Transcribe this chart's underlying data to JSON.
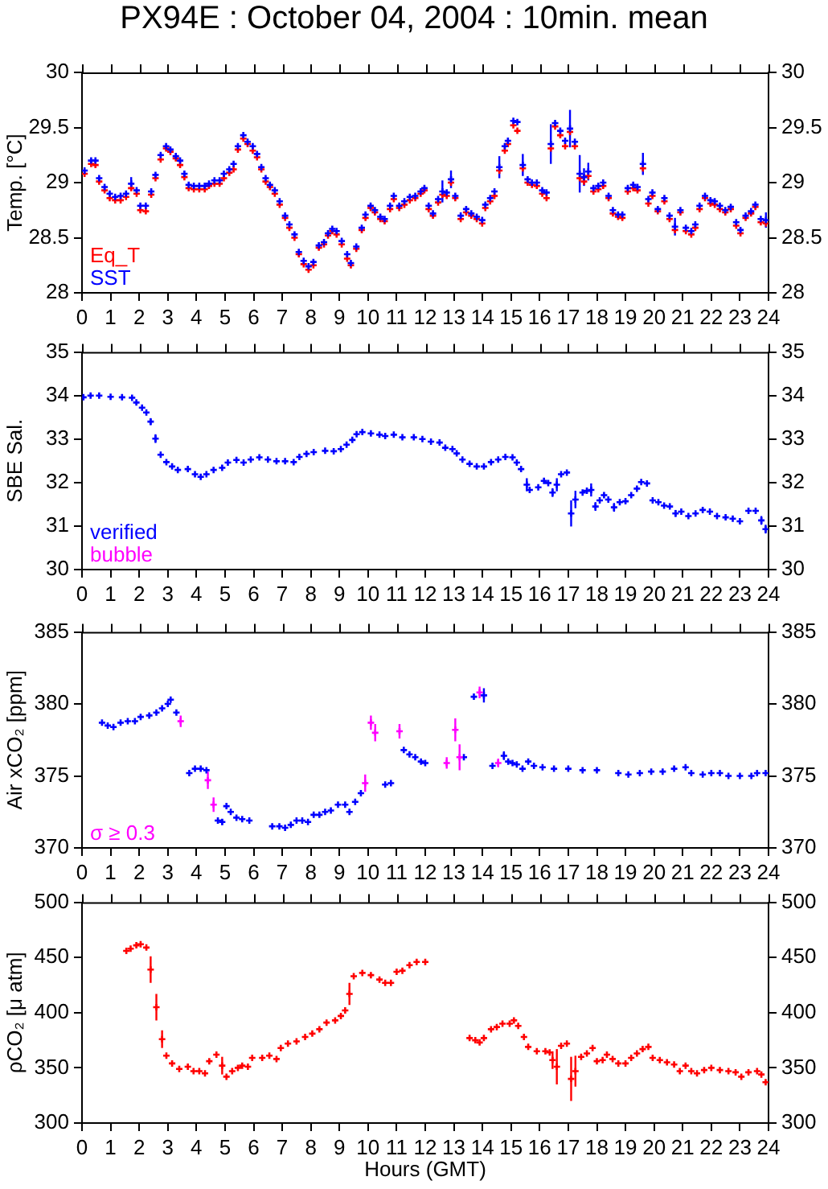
{
  "chart_data": [
    {
      "type": "scatter",
      "title": "PX94E : October 04, 2004 : 10min. mean",
      "ylabel": "Temp. [°C]",
      "xlim": [
        0,
        24
      ],
      "xticks": [
        0,
        1,
        2,
        3,
        4,
        5,
        6,
        7,
        8,
        9,
        10,
        11,
        12,
        13,
        14,
        15,
        16,
        17,
        18,
        19,
        20,
        21,
        22,
        23,
        24
      ],
      "ylim": [
        28,
        30
      ],
      "yticks": [
        28,
        28.5,
        29,
        29.5,
        30
      ],
      "y2lim": [
        28,
        30
      ],
      "y2ticks": [
        28,
        28.5,
        29,
        29.5,
        30
      ],
      "marker": "cross",
      "grid": false,
      "legend": "bottom left",
      "x": [
        0.09,
        0.32,
        0.47,
        0.6,
        0.79,
        0.97,
        1.16,
        1.35,
        1.54,
        1.72,
        1.91,
        2.04,
        2.23,
        2.42,
        2.57,
        2.75,
        2.94,
        3.09,
        3.28,
        3.43,
        3.58,
        3.73,
        3.91,
        4.1,
        4.29,
        4.44,
        4.63,
        4.81,
        4.96,
        5.15,
        5.3,
        5.45,
        5.64,
        5.79,
        5.97,
        6.12,
        6.27,
        6.42,
        6.57,
        6.74,
        6.91,
        7.1,
        7.25,
        7.43,
        7.58,
        7.75,
        7.92,
        8.09,
        8.28,
        8.46,
        8.6,
        8.75,
        8.9,
        9.08,
        9.27,
        9.4,
        9.59,
        9.78,
        9.91,
        10.09,
        10.24,
        10.43,
        10.58,
        10.77,
        10.9,
        11.09,
        11.27,
        11.46,
        11.65,
        11.84,
        11.97,
        12.12,
        12.27,
        12.45,
        12.6,
        12.75,
        12.9,
        13.05,
        13.24,
        13.43,
        13.61,
        13.8,
        13.99,
        14.1,
        14.27,
        14.42,
        14.59,
        14.78,
        14.89,
        15.08,
        15.22,
        15.41,
        15.58,
        15.73,
        15.9,
        16.09,
        16.24,
        16.39,
        16.54,
        16.72,
        16.89,
        17.06,
        17.23,
        17.4,
        17.55,
        17.7,
        17.88,
        18.05,
        18.22,
        18.41,
        18.56,
        18.74,
        18.89,
        19.08,
        19.27,
        19.42,
        19.61,
        19.8,
        19.94,
        20.13,
        20.36,
        20.54,
        20.73,
        20.92,
        21.11,
        21.3,
        21.44,
        21.59,
        21.78,
        21.97,
        22.12,
        22.3,
        22.49,
        22.68,
        22.87,
        23.02,
        23.2,
        23.39,
        23.54,
        23.73,
        23.91
      ],
      "series": [
        {
          "name": "Eq_T",
          "color": "#ff0000",
          "values": [
            29.08,
            29.17,
            29.16,
            29.01,
            28.93,
            28.86,
            28.84,
            28.84,
            28.87,
            28.95,
            28.9,
            28.75,
            28.74,
            28.89,
            29.04,
            29.21,
            29.31,
            29.28,
            29.22,
            29.16,
            29.05,
            28.95,
            28.94,
            28.94,
            28.94,
            28.97,
            28.99,
            28.99,
            29.04,
            29.09,
            29.12,
            29.3,
            29.4,
            29.35,
            29.29,
            29.23,
            29.12,
            29.01,
            28.96,
            28.9,
            28.8,
            28.68,
            28.59,
            28.5,
            28.35,
            28.26,
            28.21,
            28.25,
            28.41,
            28.44,
            28.52,
            28.56,
            28.53,
            28.44,
            28.31,
            28.25,
            28.4,
            28.57,
            28.68,
            28.77,
            28.73,
            28.67,
            28.65,
            28.76,
            28.85,
            28.77,
            28.8,
            28.84,
            28.86,
            28.9,
            28.93,
            28.76,
            28.7,
            28.82,
            28.89,
            28.88,
            29.0,
            28.86,
            28.67,
            28.73,
            28.7,
            28.67,
            28.63,
            28.77,
            28.83,
            28.88,
            29.11,
            29.29,
            29.35,
            29.52,
            29.47,
            29.13,
            29.0,
            28.98,
            28.97,
            28.9,
            28.86,
            29.31,
            29.51,
            29.43,
            29.33,
            29.46,
            29.33,
            29.04,
            29.01,
            29.06,
            28.92,
            28.94,
            28.97,
            28.86,
            28.72,
            28.69,
            28.68,
            28.92,
            28.95,
            28.93,
            29.13,
            28.81,
            28.88,
            28.74,
            28.83,
            28.67,
            28.57,
            28.73,
            28.56,
            28.53,
            28.59,
            28.76,
            28.86,
            28.81,
            28.8,
            28.76,
            28.73,
            28.76,
            28.61,
            28.54,
            28.68,
            28.72,
            28.78,
            28.64,
            28.63
          ]
        },
        {
          "name": "SST",
          "color": "#0000ff",
          "values": [
            29.11,
            29.2,
            29.2,
            29.04,
            28.96,
            28.9,
            28.87,
            28.88,
            28.9,
            28.99,
            28.93,
            28.79,
            28.79,
            28.92,
            29.07,
            29.25,
            29.33,
            29.3,
            29.24,
            29.2,
            29.08,
            28.98,
            28.97,
            28.97,
            28.97,
            28.99,
            29.02,
            29.02,
            29.08,
            29.12,
            29.17,
            29.33,
            29.43,
            29.37,
            29.33,
            29.26,
            29.14,
            29.04,
            28.98,
            28.93,
            28.83,
            28.7,
            28.62,
            28.53,
            28.37,
            28.29,
            28.24,
            28.28,
            28.43,
            28.46,
            28.54,
            28.58,
            28.56,
            28.47,
            28.35,
            28.27,
            28.42,
            28.59,
            28.71,
            28.79,
            28.75,
            28.69,
            28.67,
            28.79,
            28.88,
            28.79,
            28.83,
            28.87,
            28.88,
            28.92,
            28.95,
            28.79,
            28.72,
            28.85,
            28.92,
            28.91,
            29.03,
            28.88,
            28.7,
            28.76,
            28.72,
            28.69,
            28.66,
            28.8,
            28.86,
            28.92,
            29.14,
            29.33,
            29.38,
            29.56,
            29.55,
            29.16,
            29.03,
            29.0,
            29.0,
            28.93,
            28.91,
            29.35,
            29.54,
            29.47,
            29.38,
            29.49,
            29.37,
            29.08,
            29.05,
            29.1,
            28.95,
            28.97,
            29.0,
            28.88,
            28.75,
            28.71,
            28.71,
            28.95,
            28.98,
            28.96,
            29.17,
            28.85,
            28.91,
            28.76,
            28.86,
            28.7,
            28.6,
            28.75,
            28.59,
            28.56,
            28.62,
            28.79,
            28.88,
            28.84,
            28.83,
            28.79,
            28.75,
            28.78,
            28.64,
            28.57,
            28.7,
            28.74,
            28.8,
            28.67,
            28.66
          ],
          "errors": [
            null,
            null,
            null,
            null,
            null,
            null,
            null,
            null,
            null,
            0.06,
            null,
            null,
            null,
            null,
            null,
            null,
            null,
            null,
            null,
            null,
            null,
            null,
            null,
            null,
            null,
            null,
            null,
            null,
            null,
            null,
            null,
            null,
            null,
            null,
            null,
            null,
            null,
            null,
            null,
            null,
            null,
            null,
            null,
            null,
            null,
            null,
            null,
            null,
            null,
            null,
            null,
            null,
            null,
            null,
            null,
            null,
            null,
            null,
            null,
            null,
            null,
            null,
            null,
            null,
            null,
            null,
            null,
            null,
            null,
            null,
            null,
            null,
            null,
            null,
            0.1,
            null,
            0.08,
            null,
            null,
            null,
            null,
            null,
            null,
            null,
            null,
            null,
            0.1,
            null,
            null,
            null,
            null,
            0.1,
            null,
            null,
            null,
            null,
            null,
            0.18,
            null,
            null,
            null,
            0.17,
            null,
            0.17,
            0.08,
            0.08,
            null,
            null,
            null,
            null,
            null,
            null,
            null,
            null,
            null,
            null,
            0.1,
            null,
            null,
            null,
            null,
            null,
            0.08,
            null,
            null,
            null,
            null,
            null,
            null,
            null,
            null,
            null,
            null,
            null,
            null,
            null,
            null,
            null,
            null,
            null,
            0.07
          ]
        }
      ]
    },
    {
      "type": "scatter",
      "ylabel": "SBE Sal.",
      "xlim": [
        0,
        24
      ],
      "xticks": [
        0,
        1,
        2,
        3,
        4,
        5,
        6,
        7,
        8,
        9,
        10,
        11,
        12,
        13,
        14,
        15,
        16,
        17,
        18,
        19,
        20,
        21,
        22,
        23,
        24
      ],
      "ylim": [
        30,
        35
      ],
      "yticks": [
        30,
        31,
        32,
        33,
        34,
        35
      ],
      "y2lim": [
        30,
        35
      ],
      "y2ticks": [
        30,
        31,
        32,
        33,
        34,
        35
      ],
      "marker": "cross",
      "grid": false,
      "legend": "bottom left",
      "x": [
        0.05,
        0.3,
        0.6,
        1.0,
        1.4,
        1.75,
        1.9,
        2.1,
        2.25,
        2.4,
        2.57,
        2.75,
        2.95,
        3.15,
        3.35,
        3.7,
        3.95,
        4.15,
        4.35,
        4.6,
        4.9,
        5.1,
        5.4,
        5.65,
        5.9,
        6.2,
        6.5,
        6.8,
        7.1,
        7.4,
        7.6,
        7.85,
        8.1,
        8.5,
        8.8,
        9.05,
        9.25,
        9.45,
        9.6,
        9.8,
        10.1,
        10.4,
        10.6,
        10.9,
        11.2,
        11.6,
        11.9,
        12.2,
        12.5,
        12.7,
        12.95,
        13.1,
        13.3,
        13.55,
        13.8,
        14.05,
        14.3,
        14.55,
        14.8,
        15.05,
        15.2,
        15.35,
        15.55,
        15.65,
        15.95,
        16.15,
        16.3,
        16.45,
        16.6,
        16.75,
        16.95,
        17.1,
        17.25,
        17.5,
        17.65,
        17.8,
        17.95,
        18.1,
        18.25,
        18.4,
        18.6,
        18.8,
        19.0,
        19.2,
        19.4,
        19.55,
        19.75,
        19.95,
        20.15,
        20.35,
        20.55,
        20.75,
        20.95,
        21.2,
        21.45,
        21.7,
        21.95,
        22.2,
        22.5,
        22.75,
        23.0,
        23.3,
        23.55,
        23.75,
        23.9
      ],
      "series": [
        {
          "name": "verified",
          "color": "#0000ff",
          "values": [
            33.96,
            34.0,
            34.0,
            33.97,
            33.96,
            33.95,
            33.84,
            33.72,
            33.61,
            33.4,
            33.01,
            32.64,
            32.47,
            32.37,
            32.29,
            32.31,
            32.19,
            32.13,
            32.19,
            32.29,
            32.34,
            32.46,
            32.52,
            32.46,
            32.53,
            32.58,
            32.53,
            32.49,
            32.49,
            32.47,
            32.59,
            32.66,
            32.7,
            32.73,
            32.72,
            32.77,
            32.87,
            32.98,
            33.11,
            33.16,
            33.13,
            33.1,
            33.07,
            33.1,
            33.04,
            33.04,
            33.0,
            32.94,
            32.92,
            32.8,
            32.77,
            32.67,
            32.53,
            32.43,
            32.37,
            32.37,
            32.47,
            32.53,
            32.59,
            32.58,
            32.46,
            32.31,
            31.95,
            31.83,
            31.89,
            32.04,
            31.99,
            31.77,
            31.95,
            32.19,
            32.23,
            31.29,
            31.61,
            31.77,
            31.81,
            31.83,
            31.45,
            31.59,
            31.71,
            31.61,
            31.43,
            31.55,
            31.57,
            31.71,
            31.86,
            32.01,
            31.98,
            31.59,
            31.55,
            31.47,
            31.45,
            31.29,
            31.33,
            31.23,
            31.29,
            31.37,
            31.33,
            31.23,
            31.2,
            31.17,
            31.11,
            31.35,
            31.35,
            31.13,
            30.93
          ],
          "errors": [
            null,
            null,
            null,
            null,
            null,
            null,
            null,
            null,
            null,
            0.08,
            0.1,
            null,
            null,
            null,
            null,
            null,
            null,
            null,
            null,
            null,
            null,
            null,
            null,
            null,
            null,
            null,
            null,
            null,
            null,
            null,
            null,
            null,
            null,
            null,
            null,
            null,
            null,
            null,
            null,
            null,
            null,
            null,
            null,
            null,
            null,
            null,
            null,
            null,
            null,
            null,
            null,
            null,
            null,
            null,
            null,
            null,
            null,
            null,
            null,
            null,
            null,
            null,
            0.15,
            null,
            null,
            null,
            null,
            0.1,
            0.15,
            null,
            null,
            0.3,
            0.2,
            null,
            null,
            0.15,
            0.1,
            null,
            null,
            null,
            0.1,
            null,
            null,
            null,
            null,
            null,
            null,
            null,
            null,
            null,
            null,
            0.08,
            null,
            null,
            null,
            null,
            null,
            null,
            null,
            null,
            null,
            null,
            null,
            0.1,
            0.1
          ]
        },
        {
          "name": "bubble",
          "color": "#ff00ff",
          "values": [
            null,
            null,
            null,
            null,
            null,
            null,
            null,
            null,
            null,
            null,
            null,
            null,
            null,
            null,
            null,
            null,
            null,
            null,
            null,
            null,
            null,
            null,
            null,
            null,
            null,
            null,
            null,
            null,
            null,
            null,
            null,
            null,
            null,
            null,
            null,
            null,
            null,
            null,
            null,
            null,
            null,
            null,
            null,
            null,
            null,
            null,
            null,
            null,
            null,
            null,
            null,
            null,
            null,
            null,
            null,
            null,
            null,
            null,
            null,
            null,
            null,
            null,
            null,
            null,
            null,
            null,
            null,
            null,
            null,
            null,
            null,
            null,
            null,
            null,
            null,
            null,
            null,
            null,
            null,
            null,
            null,
            null,
            null,
            null,
            null,
            null,
            null,
            null,
            null,
            null,
            null,
            null,
            null,
            null,
            null,
            null,
            null,
            null,
            null,
            null,
            null,
            null,
            null,
            null,
            null
          ]
        }
      ]
    },
    {
      "type": "scatter",
      "ylabel": "Air xCO₂ [ppm]",
      "xlim": [
        0,
        24
      ],
      "xticks": [
        0,
        1,
        2,
        3,
        4,
        5,
        6,
        7,
        8,
        9,
        10,
        11,
        12,
        13,
        14,
        15,
        16,
        17,
        18,
        19,
        20,
        21,
        22,
        23,
        24
      ],
      "ylim": [
        370,
        385
      ],
      "yticks": [
        370,
        375,
        380,
        385
      ],
      "y2lim": [
        370,
        385
      ],
      "y2ticks": [
        370,
        375,
        380,
        385
      ],
      "marker": "cross",
      "grid": false,
      "legend": "bottom left",
      "series": [
        {
          "color": "#0000ff",
          "x": [
            0.7,
            0.9,
            1.1,
            1.35,
            1.6,
            1.85,
            2.05,
            2.35,
            2.6,
            2.8,
            3.0,
            3.1,
            3.3,
            3.75,
            3.95,
            4.15,
            4.35,
            4.75,
            4.9,
            5.05,
            5.2,
            5.4,
            5.6,
            5.85,
            6.65,
            6.9,
            7.1,
            7.3,
            7.5,
            7.7,
            7.9,
            8.1,
            8.3,
            8.5,
            8.7,
            8.95,
            9.2,
            9.35,
            9.55,
            9.75,
            10.6,
            10.8,
            11.25,
            11.45,
            11.65,
            11.85,
            12.0,
            13.35,
            13.7,
            14.05,
            14.35,
            14.75,
            14.9,
            15.05,
            15.2,
            15.4,
            15.6,
            15.8,
            16.1,
            16.5,
            17.0,
            17.5,
            18.0,
            18.75,
            19.1,
            19.5,
            19.9,
            20.3,
            20.7,
            21.1,
            21.3,
            21.7,
            22.0,
            22.3,
            22.6,
            23.0,
            23.4,
            23.6,
            23.9
          ],
          "values": [
            378.7,
            378.5,
            378.4,
            378.7,
            378.8,
            378.8,
            379.1,
            379.2,
            379.4,
            379.7,
            380.0,
            380.3,
            379.4,
            375.2,
            375.5,
            375.5,
            375.4,
            371.9,
            371.8,
            372.9,
            372.5,
            372.1,
            372.0,
            371.9,
            371.5,
            371.5,
            371.4,
            371.6,
            371.9,
            371.9,
            371.8,
            372.3,
            372.3,
            372.5,
            372.6,
            373.0,
            373.0,
            372.5,
            373.2,
            373.8,
            374.4,
            374.5,
            376.8,
            376.5,
            376.3,
            376.0,
            375.9,
            376.3,
            380.5,
            380.6,
            375.7,
            376.4,
            376.0,
            375.9,
            375.8,
            375.5,
            376.0,
            375.7,
            375.6,
            375.5,
            375.5,
            375.4,
            375.4,
            375.2,
            375.1,
            375.2,
            375.3,
            375.3,
            375.5,
            375.6,
            375.2,
            375.1,
            375.2,
            375.2,
            375.0,
            375.0,
            375.0,
            375.2,
            375.2
          ],
          "errors": [
            null,
            null,
            null,
            null,
            null,
            null,
            null,
            null,
            null,
            null,
            null,
            null,
            null,
            null,
            null,
            null,
            null,
            null,
            0.2,
            null,
            null,
            null,
            null,
            null,
            null,
            null,
            null,
            null,
            null,
            null,
            null,
            null,
            null,
            null,
            null,
            null,
            null,
            null,
            null,
            null,
            null,
            null,
            null,
            null,
            null,
            null,
            null,
            null,
            null,
            0.5,
            null,
            0.3,
            null,
            null,
            null,
            null,
            null,
            null,
            null,
            null,
            null,
            null,
            null,
            null,
            null,
            null,
            null,
            null,
            null,
            null,
            null,
            null,
            null,
            null,
            null,
            null,
            null,
            null,
            null
          ]
        },
        {
          "name": "σ ≥ 0.3",
          "color": "#ff00ff",
          "x": [
            3.45,
            4.4,
            4.6,
            9.9,
            10.1,
            10.25,
            11.1,
            12.75,
            13.05,
            13.2,
            13.9,
            14.55
          ],
          "values": [
            378.8,
            374.7,
            373.0,
            374.5,
            378.7,
            378.0,
            378.1,
            375.9,
            378.2,
            376.3,
            380.8,
            375.9
          ],
          "errors": [
            0.4,
            0.6,
            0.5,
            0.6,
            0.5,
            0.6,
            0.5,
            0.4,
            0.8,
            0.9,
            0.4,
            0.3
          ]
        }
      ]
    },
    {
      "type": "scatter",
      "ylabel": "ρCO₂ [μ atm]",
      "xlabel": "Hours (GMT)",
      "xlim": [
        0,
        24
      ],
      "xticks": [
        0,
        1,
        2,
        3,
        4,
        5,
        6,
        7,
        8,
        9,
        10,
        11,
        12,
        13,
        14,
        15,
        16,
        17,
        18,
        19,
        20,
        21,
        22,
        23,
        24
      ],
      "ylim": [
        300,
        500
      ],
      "yticks": [
        300,
        350,
        400,
        450,
        500
      ],
      "y2lim": [
        300,
        500
      ],
      "y2ticks": [
        300,
        350,
        400,
        450,
        500
      ],
      "marker": "cross",
      "grid": false,
      "x": [
        1.55,
        1.7,
        1.9,
        2.05,
        2.25,
        2.4,
        2.6,
        2.8,
        2.95,
        3.15,
        3.4,
        3.7,
        3.9,
        4.1,
        4.3,
        4.45,
        4.7,
        4.9,
        5.05,
        5.25,
        5.45,
        5.6,
        5.8,
        5.95,
        6.3,
        6.55,
        6.8,
        6.95,
        7.2,
        7.5,
        7.8,
        8.05,
        8.3,
        8.55,
        8.85,
        9.05,
        9.2,
        9.35,
        9.5,
        9.8,
        10.1,
        10.4,
        10.6,
        10.8,
        11.0,
        11.2,
        11.45,
        11.7,
        12.0,
        13.55,
        13.75,
        13.9,
        14.05,
        14.3,
        14.5,
        14.7,
        14.95,
        15.1,
        15.25,
        15.45,
        15.6,
        15.9,
        16.2,
        16.35,
        16.45,
        16.6,
        16.75,
        16.95,
        17.1,
        17.25,
        17.45,
        17.65,
        17.85,
        18.0,
        18.2,
        18.35,
        18.55,
        18.75,
        19.0,
        19.2,
        19.4,
        19.6,
        19.8,
        19.95,
        20.2,
        20.45,
        20.7,
        20.9,
        21.1,
        21.3,
        21.5,
        21.75,
        22.0,
        22.3,
        22.6,
        22.85,
        23.05,
        23.3,
        23.6,
        23.75,
        23.9
      ],
      "series": [
        {
          "color": "#ff0000",
          "values": [
            456,
            458,
            461,
            462,
            459,
            439,
            405,
            376,
            361,
            354,
            349,
            351,
            347,
            347,
            345,
            356,
            362,
            352,
            342,
            347,
            350,
            352,
            351,
            359,
            359,
            361,
            358,
            368,
            372,
            374,
            378,
            381,
            385,
            391,
            393,
            397,
            402,
            417,
            433,
            436,
            434,
            430,
            427,
            427,
            437,
            438,
            443,
            446,
            446,
            377,
            375,
            373,
            377,
            385,
            387,
            390,
            390,
            393,
            388,
            378,
            369,
            365,
            365,
            364,
            357,
            351,
            370,
            372,
            340,
            347,
            360,
            363,
            368,
            356,
            357,
            362,
            358,
            354,
            354,
            359,
            363,
            367,
            369,
            359,
            357,
            355,
            353,
            347,
            352,
            347,
            345,
            348,
            350,
            348,
            347,
            346,
            342,
            346,
            347,
            344,
            337
          ],
          "errors": [
            null,
            null,
            null,
            null,
            null,
            12,
            12,
            8,
            null,
            null,
            null,
            null,
            null,
            null,
            null,
            null,
            null,
            8,
            null,
            null,
            null,
            null,
            null,
            null,
            null,
            null,
            null,
            null,
            null,
            null,
            null,
            null,
            null,
            null,
            null,
            null,
            null,
            10,
            null,
            null,
            null,
            null,
            null,
            null,
            null,
            null,
            null,
            null,
            null,
            null,
            null,
            null,
            null,
            null,
            null,
            null,
            null,
            null,
            null,
            null,
            null,
            null,
            null,
            null,
            8,
            16,
            null,
            null,
            20,
            14,
            null,
            null,
            null,
            null,
            null,
            null,
            null,
            null,
            null,
            null,
            null,
            null,
            null,
            null,
            null,
            null,
            null,
            null,
            null,
            null,
            null,
            null,
            null,
            null,
            null,
            null,
            null,
            null,
            null,
            null,
            null
          ]
        }
      ]
    }
  ]
}
